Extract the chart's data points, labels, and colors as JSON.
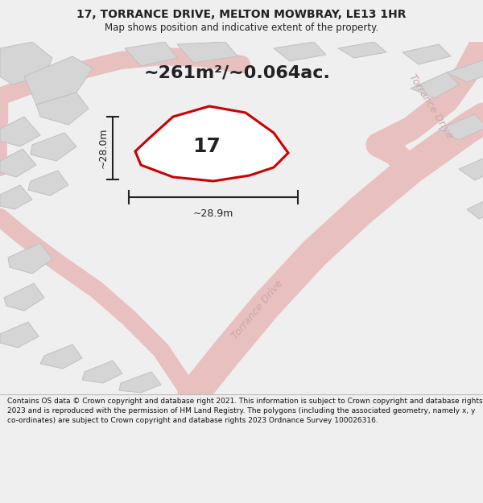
{
  "title": "17, TORRANCE DRIVE, MELTON MOWBRAY, LE13 1HR",
  "subtitle": "Map shows position and indicative extent of the property.",
  "area_text": "~261m²/~0.064ac.",
  "width_label": "~28.9m",
  "height_label": "~28.0m",
  "property_number": "17",
  "footer_text": "Contains OS data © Crown copyright and database right 2021. This information is subject to Crown copyright and database rights 2023 and is reproduced with the permission of HM Land Registry. The polygons (including the associated geometry, namely x, y co-ordinates) are subject to Crown copyright and database rights 2023 Ordnance Survey 100026316.",
  "bg_color": "#efefef",
  "map_bg": "#f7f7f7",
  "road_color": "#e8c0c0",
  "building_color": "#d5d5d5",
  "building_edge": "#c0c0c0",
  "highlight_color": "#cc0000",
  "road_label_color": "#c8a8a8",
  "title_color": "#222222",
  "footer_bg": "#ffffff",
  "dim_color": "#222222",
  "title_fontsize": 10,
  "subtitle_fontsize": 8.5,
  "area_fontsize": 16,
  "prop_label_fontsize": 18,
  "dim_fontsize": 9,
  "road_label_fontsize": 9,
  "footer_fontsize": 6.5
}
